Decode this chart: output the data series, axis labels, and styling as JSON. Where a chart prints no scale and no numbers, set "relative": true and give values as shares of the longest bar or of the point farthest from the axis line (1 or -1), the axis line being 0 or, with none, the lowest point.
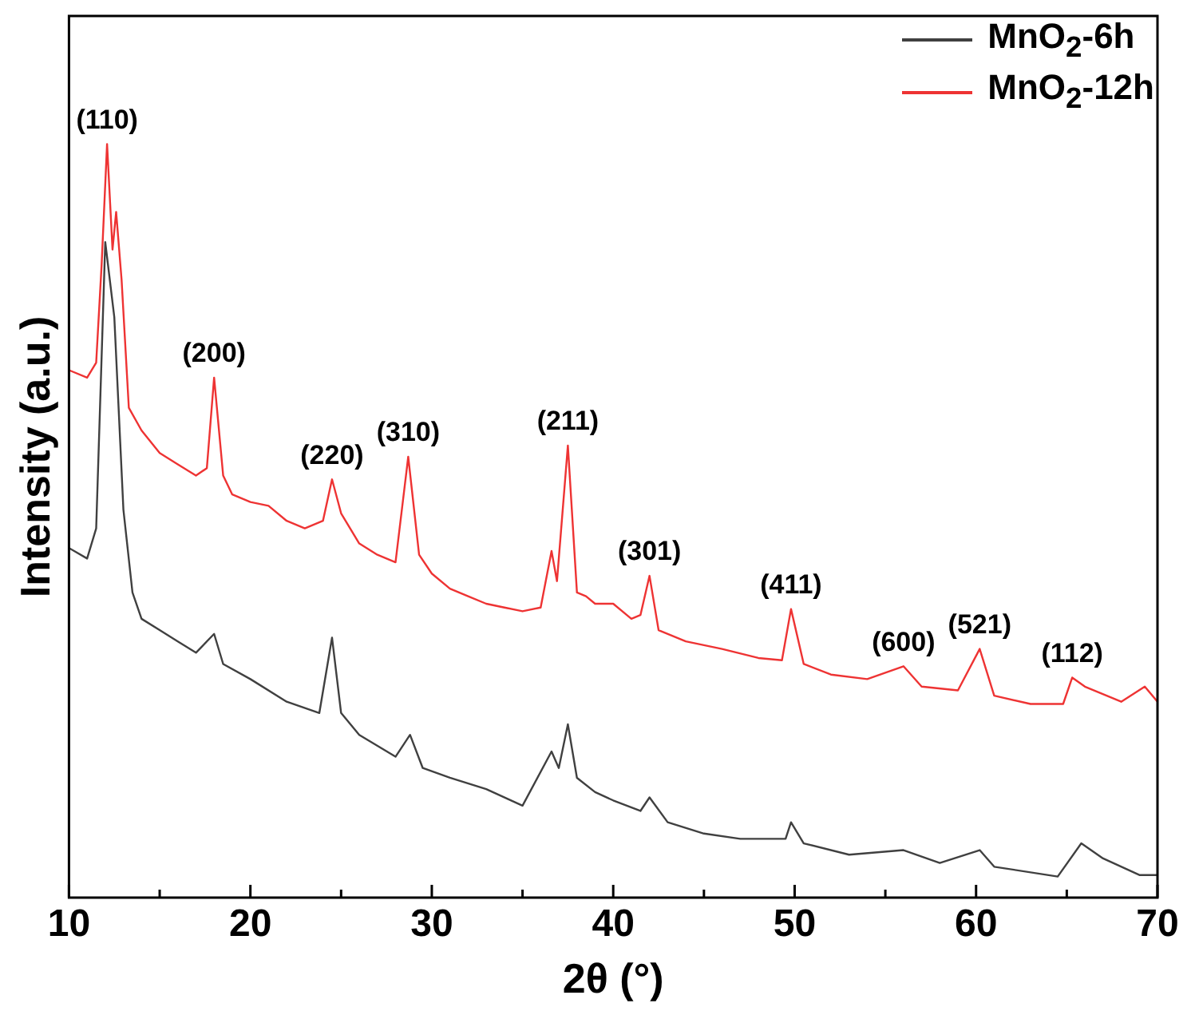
{
  "chart_data": {
    "type": "line",
    "xlabel": "2θ (°)",
    "ylabel": "Intensity (a.u.)",
    "relative": true,
    "xlim": [
      10,
      70
    ],
    "xticks": [
      10,
      {
        "value": 15,
        "label": null
      },
      20,
      {
        "value": 25,
        "label": null
      },
      30,
      {
        "value": 35,
        "label": null
      },
      40,
      {
        "value": 45,
        "label": null
      },
      50,
      {
        "value": 55,
        "label": null
      },
      60,
      {
        "value": 65,
        "label": null
      },
      70
    ],
    "grid": false,
    "legend": "top right",
    "marker": "none",
    "line_style": "solid",
    "series": [
      {
        "name": "MnO$_{2}$-6h",
        "color": "#404040",
        "x": [
          10,
          11,
          11.5,
          12,
          12.5,
          13,
          13.5,
          14,
          15,
          16,
          17,
          18,
          18.5,
          20,
          22,
          23.8,
          24.5,
          25,
          26,
          28,
          28.8,
          29.5,
          31,
          33,
          35,
          36.6,
          37,
          37.5,
          38,
          39,
          40,
          41.5,
          42,
          43,
          45,
          47,
          49.5,
          49.8,
          50.5,
          53,
          56,
          58,
          60.2,
          61,
          64.5,
          65.8,
          67,
          69,
          70
        ],
        "values": [
          0.464,
          0.45,
          0.49,
          0.87,
          0.77,
          0.515,
          0.405,
          0.37,
          0.355,
          0.34,
          0.325,
          0.35,
          0.31,
          0.29,
          0.26,
          0.245,
          0.345,
          0.245,
          0.216,
          0.187,
          0.216,
          0.172,
          0.159,
          0.144,
          0.122,
          0.194,
          0.172,
          0.23,
          0.159,
          0.14,
          0.129,
          0.115,
          0.133,
          0.1,
          0.085,
          0.078,
          0.078,
          0.1,
          0.072,
          0.057,
          0.063,
          0.046,
          0.063,
          0.041,
          0.028,
          0.072,
          0.052,
          0.03,
          0.03
        ]
      },
      {
        "name": "MnO$_{2}$-12h",
        "color": "#ee3333",
        "x": [
          10,
          11,
          11.5,
          11.8,
          12.1,
          12.4,
          12.6,
          12.9,
          13.3,
          14,
          15,
          16,
          17,
          17.6,
          18,
          18.5,
          19,
          20,
          21,
          22,
          23,
          24,
          24.5,
          25,
          26,
          27,
          28,
          28.7,
          29.3,
          30,
          31,
          32,
          33,
          34,
          35,
          36,
          36.6,
          36.9,
          37.5,
          38,
          38.5,
          39,
          40,
          41,
          41.5,
          42,
          42.5,
          44,
          46,
          48,
          49.3,
          49.8,
          50.5,
          52,
          54,
          56,
          57,
          59,
          60.2,
          61,
          63,
          64.8,
          65.3,
          66,
          68,
          69.3,
          70
        ],
        "values": [
          0.7,
          0.69,
          0.71,
          0.84,
          1,
          0.86,
          0.91,
          0.82,
          0.65,
          0.62,
          0.59,
          0.575,
          0.56,
          0.57,
          0.69,
          0.56,
          0.535,
          0.525,
          0.52,
          0.5,
          0.49,
          0.5,
          0.555,
          0.51,
          0.47,
          0.455,
          0.445,
          0.585,
          0.455,
          0.43,
          0.41,
          0.4,
          0.39,
          0.385,
          0.38,
          0.385,
          0.46,
          0.42,
          0.6,
          0.405,
          0.4,
          0.39,
          0.39,
          0.37,
          0.375,
          0.427,
          0.355,
          0.34,
          0.33,
          0.318,
          0.315,
          0.383,
          0.31,
          0.296,
          0.29,
          0.307,
          0.28,
          0.275,
          0.33,
          0.268,
          0.257,
          0.257,
          0.292,
          0.28,
          0.26,
          0.28,
          0.26
        ]
      }
    ],
    "annotations": [
      {
        "text": "(110)",
        "x": 12.1,
        "y": 1
      },
      {
        "text": "(200)",
        "x": 18,
        "y": 0.69
      },
      {
        "text": "(220)",
        "x": 24.5,
        "y": 0.555
      },
      {
        "text": "(310)",
        "x": 28.7,
        "y": 0.585
      },
      {
        "text": "(211)",
        "x": 37.5,
        "y": 0.6
      },
      {
        "text": "(301)",
        "x": 42,
        "y": 0.427
      },
      {
        "text": "(411)",
        "x": 49.8,
        "y": 0.383
      },
      {
        "text": "(600)",
        "x": 56,
        "y": 0.307
      },
      {
        "text": "(521)",
        "x": 60.2,
        "y": 0.33
      },
      {
        "text": "(112)",
        "x": 65.3,
        "y": 0.292
      }
    ]
  }
}
